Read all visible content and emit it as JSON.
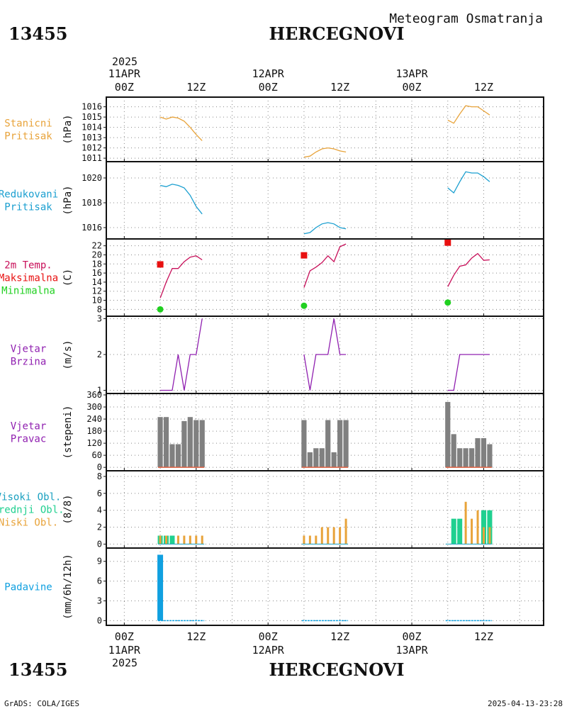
{
  "header": {
    "station_id": "13455",
    "station_name": "HERCEGNOVI",
    "meteogram_title": "Meteogram Osmatranja"
  },
  "footer": {
    "station_id": "13455",
    "station_name": "HERCEGNOVI",
    "credit": "GrADS: COLA/IGES",
    "timestamp": "2025-04-13-23:28"
  },
  "time_axis": {
    "top_year": "2025",
    "bottom_year": "2025",
    "days": [
      "11APR",
      "12APR",
      "13APR"
    ],
    "hour_labels": [
      "00Z",
      "12Z",
      "00Z",
      "12Z",
      "00Z",
      "12Z"
    ],
    "hour_positions": [
      0,
      12,
      24,
      36,
      48,
      60
    ],
    "range_hours": [
      -3,
      70
    ]
  },
  "colors": {
    "pressure_station": "#e8a33a",
    "pressure_reduced": "#1a9fd0",
    "temperature": "#c8105a",
    "temp_max": "#e81010",
    "temp_min": "#20d020",
    "wind": "#9020b0",
    "wind_dir_bar": "#808080",
    "wind_dir_baseline": "#e06040",
    "cloud_high": "#1aa0c0",
    "cloud_mid": "#20d090",
    "cloud_low": "#e8a33a",
    "precip": "#10a0e0",
    "grid": "#888888"
  },
  "chart_data": [
    {
      "type": "line",
      "panel": "station_pressure",
      "label_lines": [
        "Stanicni",
        "Pritisak"
      ],
      "label_color": "#e8a33a",
      "ylabel": "(hPa)",
      "ylim": [
        1010.8,
        1016.8
      ],
      "yticks": [
        1011,
        1012,
        1013,
        1014,
        1015,
        1016
      ],
      "series": [
        {
          "color": "#e8a33a",
          "x": [
            6,
            7,
            8,
            9,
            10,
            11,
            12,
            13
          ],
          "y": [
            1015.0,
            1014.8,
            1015.0,
            1014.9,
            1014.6,
            1014.0,
            1013.3,
            1012.7
          ]
        },
        {
          "color": "#e8a33a",
          "x": [
            30,
            31,
            32,
            33,
            34,
            35,
            36,
            37
          ],
          "y": [
            1011.1,
            1011.2,
            1011.6,
            1011.9,
            1012.0,
            1011.9,
            1011.7,
            1011.6
          ]
        },
        {
          "color": "#e8a33a",
          "x": [
            54,
            55,
            56,
            57,
            58,
            59,
            60,
            61
          ],
          "y": [
            1014.7,
            1014.4,
            1015.3,
            1016.1,
            1016.0,
            1016.0,
            1015.6,
            1015.2
          ]
        }
      ]
    },
    {
      "type": "line",
      "panel": "reduced_pressure",
      "label_lines": [
        "Redukovani",
        "Pritisak"
      ],
      "label_color": "#1a9fd0",
      "ylabel": "(hPa)",
      "ylim": [
        1015.2,
        1021.2
      ],
      "yticks": [
        1016,
        1018,
        1020
      ],
      "series": [
        {
          "color": "#1a9fd0",
          "x": [
            6,
            7,
            8,
            9,
            10,
            11,
            12,
            13
          ],
          "y": [
            1019.4,
            1019.3,
            1019.5,
            1019.4,
            1019.2,
            1018.6,
            1017.7,
            1017.1
          ]
        },
        {
          "color": "#1a9fd0",
          "x": [
            30,
            31,
            32,
            33,
            34,
            35,
            36,
            37
          ],
          "y": [
            1015.5,
            1015.6,
            1016.0,
            1016.3,
            1016.4,
            1016.3,
            1016.0,
            1015.9
          ]
        },
        {
          "color": "#1a9fd0",
          "x": [
            54,
            55,
            56,
            57,
            58,
            59,
            60,
            61
          ],
          "y": [
            1019.2,
            1018.8,
            1019.7,
            1020.5,
            1020.4,
            1020.4,
            1020.1,
            1019.7
          ]
        }
      ]
    },
    {
      "type": "line",
      "panel": "temperature",
      "label_lines": [
        "2m Temp.",
        "Maksimalna",
        "Minimalna"
      ],
      "label_colors": [
        "#c8105a",
        "#e81010",
        "#20d020"
      ],
      "ylabel": "(C)",
      "ylim": [
        6.8,
        23.2
      ],
      "yticks": [
        8,
        10,
        12,
        14,
        16,
        18,
        20,
        22
      ],
      "series": [
        {
          "color": "#c8105a",
          "x": [
            6,
            7,
            8,
            9,
            10,
            11,
            12,
            13
          ],
          "y": [
            10.5,
            14.0,
            17.0,
            17.0,
            18.5,
            19.5,
            19.8,
            18.9
          ]
        },
        {
          "color": "#c8105a",
          "x": [
            30,
            31,
            32,
            33,
            34,
            35,
            36,
            37
          ],
          "y": [
            12.8,
            16.5,
            17.3,
            18.3,
            19.8,
            18.5,
            21.8,
            22.4
          ]
        },
        {
          "color": "#c8105a",
          "x": [
            54,
            55,
            56,
            57,
            58,
            59,
            60,
            61
          ],
          "y": [
            13.0,
            15.5,
            17.5,
            17.8,
            19.3,
            20.3,
            18.8,
            18.9
          ]
        }
      ],
      "max_points": {
        "color": "#e81010",
        "x": [
          6,
          30,
          54
        ],
        "y": [
          17.9,
          19.9,
          22.7
        ]
      },
      "min_points": {
        "color": "#20d020",
        "x": [
          6,
          30,
          54
        ],
        "y": [
          8.0,
          8.8,
          9.5
        ]
      }
    },
    {
      "type": "line",
      "panel": "wind_speed",
      "label_lines": [
        "Vjetar",
        "Brzina"
      ],
      "label_color": "#9020b0",
      "ylabel": "(m/s)",
      "ylim": [
        0.95,
        3.03
      ],
      "yticks": [
        1,
        2,
        3
      ],
      "series": [
        {
          "color": "#9020b0",
          "x": [
            6,
            7,
            8,
            9,
            10,
            11,
            12,
            13
          ],
          "y": [
            1,
            1,
            1,
            2,
            1,
            2,
            2,
            3
          ]
        },
        {
          "color": "#9020b0",
          "x": [
            30,
            31,
            32,
            33,
            34,
            35,
            36,
            37
          ],
          "y": [
            2,
            1,
            2,
            2,
            2,
            3,
            2,
            2
          ]
        },
        {
          "color": "#9020b0",
          "x": [
            54,
            55,
            56,
            57,
            58,
            59,
            60,
            61
          ],
          "y": [
            1,
            1,
            2,
            2,
            2,
            2,
            2,
            2
          ]
        }
      ]
    },
    {
      "type": "bar",
      "panel": "wind_direction",
      "label_lines": [
        "Vjetar",
        "Pravac"
      ],
      "label_color": "#9020b0",
      "ylabel": "(stepeni)",
      "ylim": [
        -10,
        360
      ],
      "yticks": [
        0,
        60,
        120,
        180,
        240,
        300,
        360
      ],
      "bar_color": "#808080",
      "x": [
        6,
        7,
        8,
        9,
        10,
        11,
        12,
        13,
        30,
        31,
        32,
        33,
        34,
        35,
        36,
        37,
        54,
        55,
        56,
        57,
        58,
        59,
        60,
        61
      ],
      "values": [
        250,
        250,
        115,
        115,
        230,
        250,
        235,
        235,
        235,
        75,
        95,
        95,
        235,
        75,
        235,
        235,
        325,
        165,
        95,
        95,
        95,
        145,
        145,
        115
      ]
    },
    {
      "type": "bar",
      "panel": "clouds",
      "label_lines": [
        "Visoki Obl.",
        "Srednji Obl.",
        "Niski Obl."
      ],
      "label_colors": [
        "#1aa0c0",
        "#20d090",
        "#e8a33a"
      ],
      "ylabel": "(8/8)",
      "ylim": [
        -0.3,
        8.5
      ],
      "yticks": [
        0,
        2,
        4,
        6,
        8
      ],
      "x": [
        6,
        7,
        8,
        9,
        10,
        11,
        12,
        13,
        30,
        31,
        32,
        33,
        34,
        35,
        36,
        37,
        54,
        55,
        56,
        57,
        58,
        59,
        60,
        61
      ],
      "series": [
        {
          "name": "Visoki Obl.",
          "color": "#1aa0c0",
          "values": [
            0,
            0,
            0,
            0,
            0,
            0,
            0,
            0,
            0,
            0,
            0,
            0,
            0,
            0,
            0,
            0,
            0,
            0,
            0,
            0,
            0,
            0,
            0,
            0
          ]
        },
        {
          "name": "Srednji Obl.",
          "color": "#20d090",
          "values": [
            1,
            1,
            1,
            0,
            0,
            0,
            0,
            0,
            0,
            0,
            0,
            0,
            0,
            0,
            0,
            0,
            0,
            3,
            3,
            0,
            0,
            0,
            4,
            4
          ]
        },
        {
          "name": "Niski Obl.",
          "color": "#e8a33a",
          "values": [
            1,
            1,
            0,
            1,
            1,
            1,
            1,
            1,
            1,
            1,
            1,
            2,
            2,
            2,
            2,
            3,
            0,
            0,
            0,
            5,
            3,
            4,
            2,
            2
          ]
        }
      ]
    },
    {
      "type": "bar",
      "panel": "precipitation",
      "label_lines": [
        "Padavine"
      ],
      "label_color": "#10a0e0",
      "ylabel": "(mm/6h/12h)",
      "ylim": [
        -0.5,
        10.8
      ],
      "yticks": [
        0,
        3,
        6,
        9
      ],
      "bar_color": "#10a0e0",
      "x": [
        6,
        7,
        8,
        9,
        10,
        11,
        12,
        13,
        30,
        31,
        32,
        33,
        34,
        35,
        36,
        37,
        54,
        55,
        56,
        57,
        58,
        59,
        60,
        61
      ],
      "values": [
        10,
        0,
        0,
        0,
        0,
        0,
        0,
        0,
        0,
        0,
        0,
        0,
        0,
        0,
        0,
        0,
        0,
        0,
        0,
        0,
        0,
        0,
        0,
        0
      ]
    }
  ]
}
